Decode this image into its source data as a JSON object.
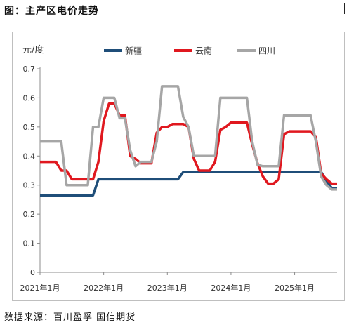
{
  "title": "图：主产区电价走势",
  "source": "数据来源：百川盈孚 国信期货",
  "chart_data": {
    "type": "line",
    "ylabel": "元/度",
    "ylim": [
      0,
      0.7
    ],
    "yticks": [
      "0",
      "0.1",
      "0.2",
      "0.3",
      "0.4",
      "0.5",
      "0.6",
      "0.7"
    ],
    "xlim": [
      "2021-01",
      "2025-09"
    ],
    "xticks": [
      {
        "date": "2021-01",
        "label": "2021年1月"
      },
      {
        "date": "2022-01",
        "label": "2022年1月"
      },
      {
        "date": "2023-01",
        "label": "2023年1月"
      },
      {
        "date": "2024-01",
        "label": "2024年1月"
      },
      {
        "date": "2025-01",
        "label": "2025年1月"
      }
    ],
    "legend_position": "top",
    "grid": false,
    "series": [
      {
        "name": "新疆",
        "color": "#1f4e79",
        "points": [
          [
            "2021-01",
            0.265
          ],
          [
            "2021-11",
            0.265
          ],
          [
            "2021-12",
            0.32
          ],
          [
            "2022-06",
            0.32
          ],
          [
            "2022-12",
            0.32
          ],
          [
            "2023-03",
            0.32
          ],
          [
            "2023-04",
            0.345
          ],
          [
            "2024-06",
            0.345
          ],
          [
            "2025-01",
            0.345
          ],
          [
            "2025-06",
            0.345
          ],
          [
            "2025-07",
            0.315
          ],
          [
            "2025-08",
            0.29
          ],
          [
            "2025-09",
            0.29
          ]
        ]
      },
      {
        "name": "云南",
        "color": "#e0181f",
        "points": [
          [
            "2021-01",
            0.38
          ],
          [
            "2021-04",
            0.38
          ],
          [
            "2021-05",
            0.35
          ],
          [
            "2021-06",
            0.35
          ],
          [
            "2021-07",
            0.32
          ],
          [
            "2021-11",
            0.32
          ],
          [
            "2021-12",
            0.38
          ],
          [
            "2022-01",
            0.52
          ],
          [
            "2022-02",
            0.58
          ],
          [
            "2022-03",
            0.58
          ],
          [
            "2022-04",
            0.54
          ],
          [
            "2022-05",
            0.54
          ],
          [
            "2022-06",
            0.4
          ],
          [
            "2022-07",
            0.39
          ],
          [
            "2022-08",
            0.375
          ],
          [
            "2022-10",
            0.375
          ],
          [
            "2022-11",
            0.48
          ],
          [
            "2022-12",
            0.5
          ],
          [
            "2023-01",
            0.5
          ],
          [
            "2023-02",
            0.51
          ],
          [
            "2023-04",
            0.51
          ],
          [
            "2023-05",
            0.5
          ],
          [
            "2023-06",
            0.39
          ],
          [
            "2023-07",
            0.35
          ],
          [
            "2023-09",
            0.35
          ],
          [
            "2023-10",
            0.38
          ],
          [
            "2023-11",
            0.49
          ],
          [
            "2023-12",
            0.5
          ],
          [
            "2024-01",
            0.515
          ],
          [
            "2024-04",
            0.515
          ],
          [
            "2024-05",
            0.44
          ],
          [
            "2024-06",
            0.375
          ],
          [
            "2024-07",
            0.33
          ],
          [
            "2024-08",
            0.305
          ],
          [
            "2024-09",
            0.305
          ],
          [
            "2024-10",
            0.32
          ],
          [
            "2024-11",
            0.475
          ],
          [
            "2024-12",
            0.485
          ],
          [
            "2025-04",
            0.485
          ],
          [
            "2025-05",
            0.465
          ],
          [
            "2025-06",
            0.34
          ],
          [
            "2025-07",
            0.32
          ],
          [
            "2025-08",
            0.305
          ],
          [
            "2025-09",
            0.305
          ]
        ]
      },
      {
        "name": "四川",
        "color": "#a6a6a6",
        "points": [
          [
            "2021-01",
            0.45
          ],
          [
            "2021-05",
            0.45
          ],
          [
            "2021-06",
            0.3
          ],
          [
            "2021-09",
            0.3
          ],
          [
            "2021-10",
            0.3
          ],
          [
            "2021-11",
            0.5
          ],
          [
            "2021-12",
            0.5
          ],
          [
            "2022-01",
            0.6
          ],
          [
            "2022-03",
            0.6
          ],
          [
            "2022-04",
            0.53
          ],
          [
            "2022-05",
            0.53
          ],
          [
            "2022-06",
            0.42
          ],
          [
            "2022-07",
            0.365
          ],
          [
            "2022-08",
            0.38
          ],
          [
            "2022-10",
            0.38
          ],
          [
            "2022-11",
            0.45
          ],
          [
            "2022-12",
            0.64
          ],
          [
            "2023-03",
            0.64
          ],
          [
            "2023-04",
            0.535
          ],
          [
            "2023-05",
            0.5
          ],
          [
            "2023-06",
            0.4
          ],
          [
            "2023-10",
            0.4
          ],
          [
            "2023-11",
            0.6
          ],
          [
            "2024-04",
            0.6
          ],
          [
            "2024-05",
            0.45
          ],
          [
            "2024-06",
            0.37
          ],
          [
            "2024-07",
            0.365
          ],
          [
            "2024-10",
            0.365
          ],
          [
            "2024-11",
            0.54
          ],
          [
            "2025-04",
            0.54
          ],
          [
            "2025-05",
            0.45
          ],
          [
            "2025-06",
            0.33
          ],
          [
            "2025-07",
            0.3
          ],
          [
            "2025-08",
            0.285
          ],
          [
            "2025-09",
            0.285
          ]
        ]
      }
    ]
  }
}
